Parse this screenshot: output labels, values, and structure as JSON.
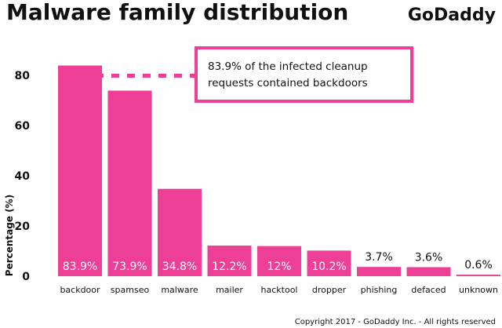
{
  "chart_data": {
    "type": "bar",
    "title": "Malware family distribution",
    "xlabel": "",
    "ylabel": "Percentage (%)",
    "ylim": [
      0,
      90
    ],
    "yticks": [
      0,
      20,
      40,
      60,
      80
    ],
    "grid": false,
    "categories": [
      "backdoor",
      "spamseo",
      "malware",
      "mailer",
      "hacktool",
      "dropper",
      "phishing",
      "defaced",
      "unknown"
    ],
    "values": [
      83.9,
      73.9,
      34.8,
      12.2,
      12,
      10.2,
      3.7,
      3.6,
      0.6
    ],
    "data_labels": [
      "83.9%",
      "73.9%",
      "34.8%",
      "12.2%",
      "12%",
      "10.2%",
      "3.7%",
      "3.6%",
      "0.6%"
    ],
    "bar_color": "#ee3f96",
    "annotation": {
      "line1": "83.9% of the infected cleanup",
      "line2": "requests contained backdoors",
      "at_value": 83.9
    }
  },
  "brand": "GoDaddy",
  "copyright": "Copyright 2017 - GoDaddy Inc. - All rights reserved"
}
